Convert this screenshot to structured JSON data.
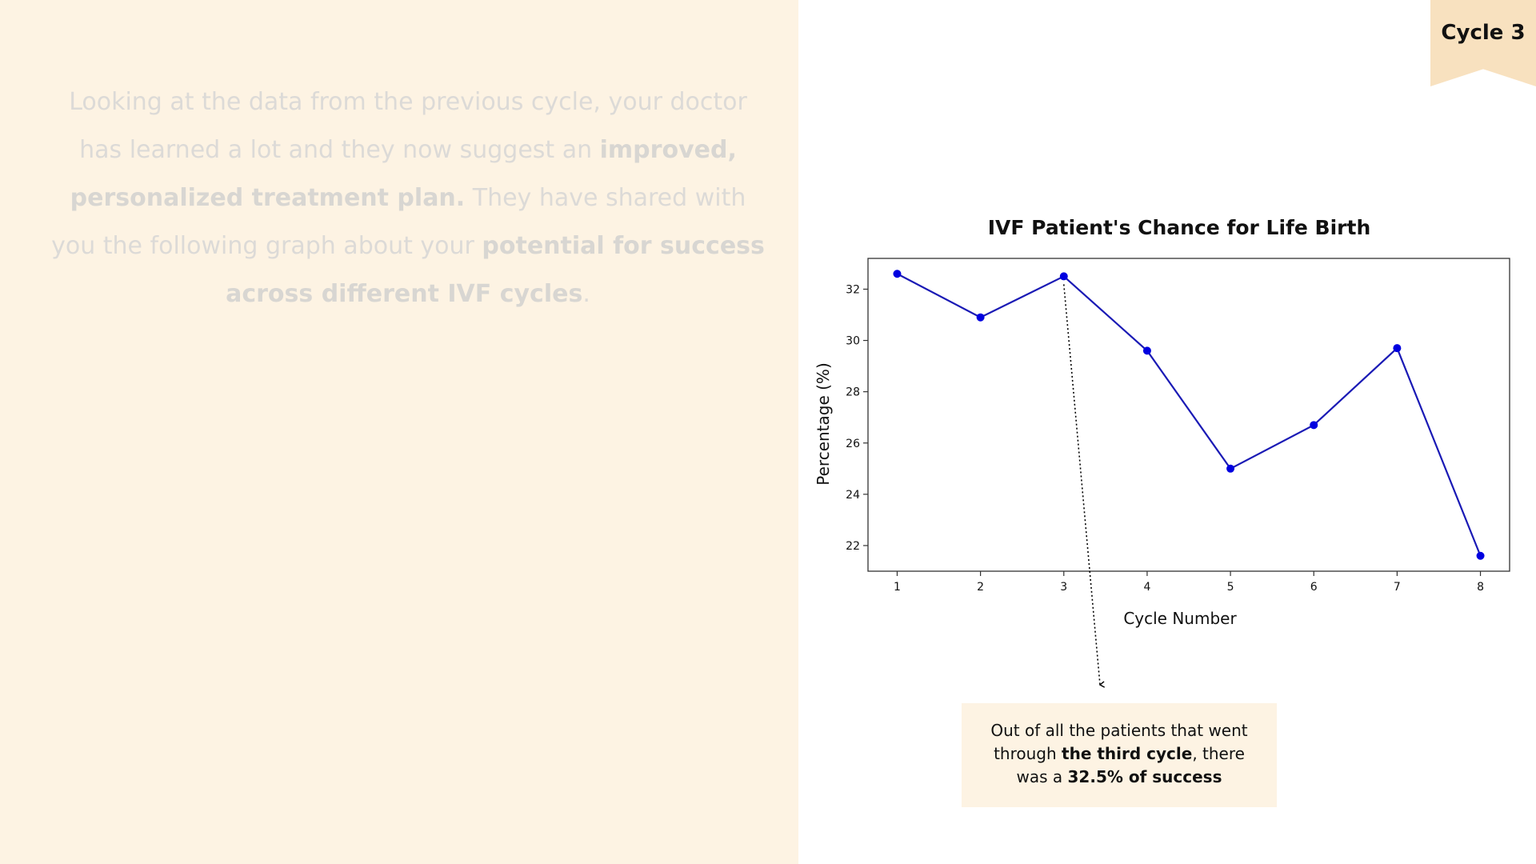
{
  "intro": {
    "p1": "Looking at the data from the previous cycle, your doctor has learned a lot and they now suggest an ",
    "b1": "improved, personalized treatment plan.",
    "p2": " They have shared with you the following graph about your ",
    "b2": "potential for success across different IVF cycles",
    "p3": "."
  },
  "cycle_tab": {
    "label": "Cycle 3"
  },
  "callout": {
    "p1": "Out of all the patients that went through ",
    "b1": "the third cycle",
    "p2": ", there was a ",
    "b2": "32.5% of success"
  },
  "colors": {
    "line": "#1a1ab5",
    "marker": "#0000e0",
    "left_panel": "#fdf3e3",
    "tab": "#f8e1bf"
  },
  "chart_data": {
    "type": "line",
    "title": "IVF Patient's Chance for Life Birth",
    "xlabel": "Cycle Number",
    "ylabel": "Percentage (%)",
    "x": [
      1,
      2,
      3,
      4,
      5,
      6,
      7,
      8
    ],
    "y": [
      32.6,
      30.9,
      32.5,
      29.6,
      25.0,
      26.7,
      29.7,
      21.6
    ],
    "xticks": [
      1,
      2,
      3,
      4,
      5,
      6,
      7,
      8
    ],
    "yticks": [
      22,
      24,
      26,
      28,
      30,
      32
    ],
    "xlim": [
      0.65,
      8.35
    ],
    "ylim": [
      21.0,
      33.2
    ],
    "grid": false,
    "annotation": {
      "x": 3,
      "y": 32.5,
      "style": "dotted-arrow"
    }
  }
}
